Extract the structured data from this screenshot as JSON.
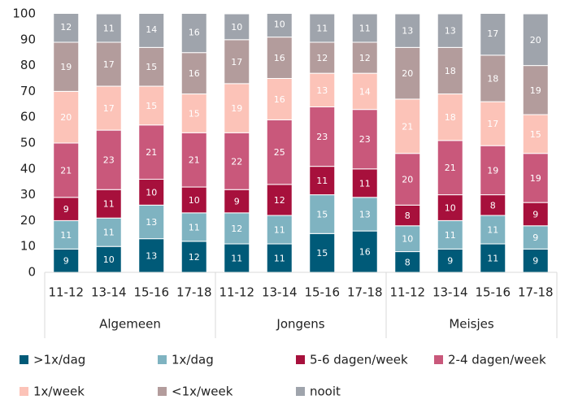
{
  "chart_data": {
    "type": "stacked_bar",
    "categories": [
      "11-12",
      "13-14",
      "15-16",
      "17-18",
      "11-12",
      "13-14",
      "15-16",
      "17-18",
      "11-12",
      "13-14",
      "15-16",
      "17-18"
    ],
    "groups": [
      "Algemeen",
      "Jongens",
      "Meisjes"
    ],
    "series": [
      {
        "name": ">1x/dag",
        "color": "#005a78",
        "values": [
          9,
          10,
          13,
          12,
          11,
          11,
          15,
          16,
          8,
          9,
          11,
          9
        ]
      },
      {
        "name": "1x/dag",
        "color": "#7fb3c1",
        "values": [
          11,
          11,
          13,
          11,
          12,
          11,
          15,
          13,
          10,
          11,
          11,
          9
        ]
      },
      {
        "name": "5-6 dagen/week",
        "color": "#a7103c",
        "values": [
          9,
          11,
          10,
          10,
          9,
          12,
          11,
          11,
          8,
          10,
          8,
          9
        ]
      },
      {
        "name": "2-4 dagen/week",
        "color": "#c9587b",
        "values": [
          21,
          23,
          21,
          21,
          22,
          25,
          23,
          23,
          20,
          21,
          19,
          19
        ]
      },
      {
        "name": "1x/week",
        "color": "#fcc3b8",
        "values": [
          20,
          17,
          15,
          15,
          19,
          16,
          13,
          14,
          21,
          18,
          17,
          15
        ]
      },
      {
        "name": "<1x/week",
        "color": "#b39c9c",
        "values": [
          19,
          17,
          15,
          16,
          17,
          16,
          12,
          12,
          20,
          18,
          18,
          19
        ]
      },
      {
        "name": "nooit",
        "color": "#9fa4ac",
        "values": [
          12,
          11,
          14,
          16,
          10,
          10,
          11,
          11,
          13,
          13,
          17,
          20
        ]
      }
    ],
    "ylim": [
      0,
      100
    ],
    "yticks": [
      0,
      10,
      20,
      30,
      40,
      50,
      60,
      70,
      80,
      90,
      100
    ],
    "grid": false
  }
}
